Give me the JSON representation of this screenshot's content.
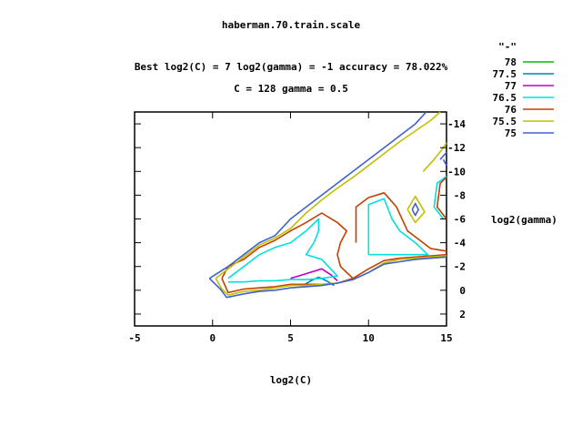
{
  "chart_data": {
    "type": "line",
    "title": "haberman.70.train.scale",
    "subtitle_line1": "Best log2(C) = 7  log2(gamma) = -1  accuracy = 78.022%",
    "subtitle_line2": "C = 128  gamma = 0.5",
    "xlabel": "log2(C)",
    "ylabel": "log2(gamma)",
    "xlim": [
      -5,
      15
    ],
    "ylim": [
      3,
      -15
    ],
    "x_ticks": [
      "-5",
      "0",
      "5",
      "10",
      "15"
    ],
    "x_tick_values": [
      -5,
      0,
      5,
      10,
      15
    ],
    "y_ticks": [
      "-14",
      "-12",
      "-10",
      "-8",
      "-6",
      "-4",
      "-2",
      "0",
      "2"
    ],
    "y_tick_values": [
      -14,
      -12,
      -10,
      -8,
      -6,
      -4,
      -2,
      0,
      2
    ],
    "legend_title": "\"-\"",
    "legend_position": "top-right, outside plot",
    "grid": false,
    "series": [
      {
        "name": "78",
        "color": "#00c000",
        "segments": []
      },
      {
        "name": "77.5",
        "color": "#0080c0",
        "segments": [
          [
            [
              5.8,
              -0.4
            ],
            [
              6.3,
              -0.8
            ],
            [
              6.8,
              -1.1
            ],
            [
              7.3,
              -0.8
            ],
            [
              7.8,
              -0.4
            ]
          ]
        ]
      },
      {
        "name": "77",
        "color": "#c000c0",
        "segments": [
          [
            [
              5.0,
              -1.0
            ],
            [
              6.0,
              -1.4
            ],
            [
              7.0,
              -1.8
            ],
            [
              7.6,
              -1.3
            ],
            [
              8.0,
              -0.8
            ]
          ]
        ]
      },
      {
        "name": "76.5",
        "color": "#00e0e0",
        "segments": [
          [
            [
              1.0,
              -1.0
            ],
            [
              2.0,
              -2.0
            ],
            [
              3.0,
              -3.0
            ],
            [
              4.0,
              -3.6
            ],
            [
              5.0,
              -4.0
            ],
            [
              6.0,
              -5.0
            ],
            [
              6.8,
              -6.0
            ],
            [
              6.8,
              -5.0
            ],
            [
              6.5,
              -4.0
            ],
            [
              6.0,
              -3.0
            ],
            [
              7.0,
              -2.6
            ],
            [
              8.0,
              -1.2
            ],
            [
              7.0,
              -1.0
            ],
            [
              6.0,
              -0.9
            ],
            [
              5.0,
              -0.9
            ],
            [
              4.0,
              -0.8
            ],
            [
              3.0,
              -0.8
            ],
            [
              2.0,
              -0.7
            ],
            [
              1.0,
              -0.7
            ]
          ],
          [
            [
              10.0,
              -3.0
            ],
            [
              10.0,
              -5.0
            ],
            [
              10.0,
              -7.2
            ],
            [
              11.0,
              -7.7
            ],
            [
              11.5,
              -6.0
            ],
            [
              12.0,
              -5.0
            ],
            [
              13.0,
              -4.0
            ],
            [
              13.8,
              -3.0
            ],
            [
              13.0,
              -3.0
            ],
            [
              12.0,
              -3.0
            ],
            [
              11.0,
              -3.0
            ],
            [
              10.0,
              -3.0
            ]
          ],
          [
            [
              14.8,
              -6.0
            ],
            [
              14.2,
              -7.0
            ],
            [
              14.4,
              -9.0
            ],
            [
              15.0,
              -9.6
            ]
          ]
        ]
      },
      {
        "name": "76",
        "color": "#c04000",
        "segments": [
          [
            [
              0.6,
              -1.0
            ],
            [
              1.0,
              -2.0
            ],
            [
              2.0,
              -2.6
            ],
            [
              3.0,
              -3.6
            ],
            [
              4.0,
              -4.2
            ],
            [
              5.0,
              -5.0
            ],
            [
              6.0,
              -5.7
            ],
            [
              7.0,
              -6.5
            ],
            [
              8.0,
              -5.7
            ],
            [
              8.6,
              -5.0
            ],
            [
              8.2,
              -4.0
            ],
            [
              8.0,
              -3.0
            ],
            [
              8.2,
              -2.0
            ],
            [
              9.0,
              -1.0
            ],
            [
              8.0,
              -0.6
            ],
            [
              7.0,
              -0.5
            ],
            [
              6.0,
              -0.5
            ],
            [
              5.0,
              -0.5
            ],
            [
              4.0,
              -0.3
            ],
            [
              3.0,
              -0.2
            ],
            [
              2.0,
              -0.1
            ],
            [
              1.0,
              0.2
            ],
            [
              0.6,
              -1.0
            ]
          ],
          [
            [
              9.0,
              -1.0
            ],
            [
              10.0,
              -1.8
            ],
            [
              11.0,
              -2.5
            ],
            [
              12.0,
              -2.7
            ],
            [
              13.0,
              -2.8
            ],
            [
              14.0,
              -2.9
            ],
            [
              15.0,
              -3.0
            ]
          ],
          [
            [
              9.2,
              -4.0
            ],
            [
              9.2,
              -7.0
            ],
            [
              10.0,
              -7.8
            ],
            [
              11.0,
              -8.2
            ],
            [
              11.8,
              -7.0
            ],
            [
              12.5,
              -5.0
            ],
            [
              13.0,
              -4.5
            ],
            [
              14.0,
              -3.5
            ],
            [
              15.0,
              -3.3
            ]
          ],
          [
            [
              15.0,
              -6.0
            ],
            [
              14.4,
              -7.0
            ],
            [
              14.6,
              -9.0
            ],
            [
              15.0,
              -9.5
            ]
          ]
        ]
      },
      {
        "name": "75.5",
        "color": "#c0c000",
        "segments": [
          [
            [
              0.2,
              -1.0
            ],
            [
              1.0,
              -1.8
            ],
            [
              2.0,
              -2.8
            ],
            [
              3.0,
              -3.8
            ],
            [
              4.0,
              -4.4
            ],
            [
              5.0,
              -5.2
            ],
            [
              6.0,
              -6.5
            ],
            [
              7.0,
              -7.6
            ],
            [
              8.0,
              -8.6
            ],
            [
              9.0,
              -9.5
            ],
            [
              10.0,
              -10.5
            ],
            [
              11.0,
              -11.5
            ],
            [
              12.0,
              -12.5
            ],
            [
              13.0,
              -13.4
            ],
            [
              14.0,
              -14.3
            ],
            [
              14.6,
              -15.0
            ]
          ],
          [
            [
              0.2,
              -1.0
            ],
            [
              0.6,
              -0.1
            ],
            [
              1.0,
              0.4
            ],
            [
              2.0,
              0.1
            ],
            [
              3.0,
              0.0
            ],
            [
              4.0,
              -0.2
            ],
            [
              5.0,
              -0.4
            ],
            [
              6.0,
              -0.4
            ],
            [
              7.0,
              -0.5
            ],
            [
              8.0,
              -0.6
            ],
            [
              9.0,
              -0.9
            ],
            [
              10.0,
              -1.5
            ],
            [
              11.0,
              -2.3
            ],
            [
              12.0,
              -2.6
            ],
            [
              13.0,
              -2.7
            ],
            [
              14.0,
              -2.8
            ],
            [
              15.0,
              -2.9
            ]
          ],
          [
            [
              12.5,
              -6.8
            ],
            [
              13.0,
              -7.9
            ],
            [
              13.6,
              -6.6
            ],
            [
              13.0,
              -5.7
            ],
            [
              12.5,
              -6.8
            ]
          ],
          [
            [
              13.5,
              -10.0
            ],
            [
              14.2,
              -11.0
            ],
            [
              14.8,
              -12.0
            ],
            [
              15.0,
              -12.4
            ]
          ]
        ]
      },
      {
        "name": "75",
        "color": "#4060d0",
        "segments": [
          [
            [
              -0.2,
              -1.0
            ],
            [
              1.0,
              -2.0
            ],
            [
              2.0,
              -3.0
            ],
            [
              3.0,
              -4.0
            ],
            [
              4.0,
              -4.6
            ],
            [
              5.0,
              -6.0
            ],
            [
              6.0,
              -7.0
            ],
            [
              7.0,
              -8.0
            ],
            [
              8.0,
              -9.0
            ],
            [
              9.0,
              -10.0
            ],
            [
              10.0,
              -11.0
            ],
            [
              11.0,
              -12.0
            ],
            [
              12.0,
              -13.0
            ],
            [
              13.0,
              -14.0
            ],
            [
              13.7,
              -15.0
            ]
          ],
          [
            [
              -0.2,
              -1.0
            ],
            [
              0.5,
              -0.1
            ],
            [
              0.9,
              0.6
            ],
            [
              2.0,
              0.3
            ],
            [
              3.0,
              0.1
            ],
            [
              4.0,
              0.0
            ],
            [
              5.0,
              -0.2
            ],
            [
              6.0,
              -0.3
            ],
            [
              7.0,
              -0.4
            ],
            [
              8.0,
              -0.6
            ],
            [
              9.0,
              -0.9
            ],
            [
              10.0,
              -1.5
            ],
            [
              11.0,
              -2.2
            ],
            [
              12.0,
              -2.4
            ],
            [
              13.0,
              -2.6
            ],
            [
              14.0,
              -2.7
            ],
            [
              15.0,
              -2.8
            ]
          ],
          [
            [
              12.8,
              -6.8
            ],
            [
              13.0,
              -7.3
            ],
            [
              13.2,
              -6.8
            ],
            [
              13.0,
              -6.3
            ],
            [
              12.8,
              -6.8
            ]
          ],
          [
            [
              14.6,
              -11.0
            ],
            [
              15.0,
              -11.6
            ]
          ],
          [
            [
              15.0,
              -10.5
            ],
            [
              14.8,
              -11.0
            ]
          ]
        ]
      }
    ]
  }
}
